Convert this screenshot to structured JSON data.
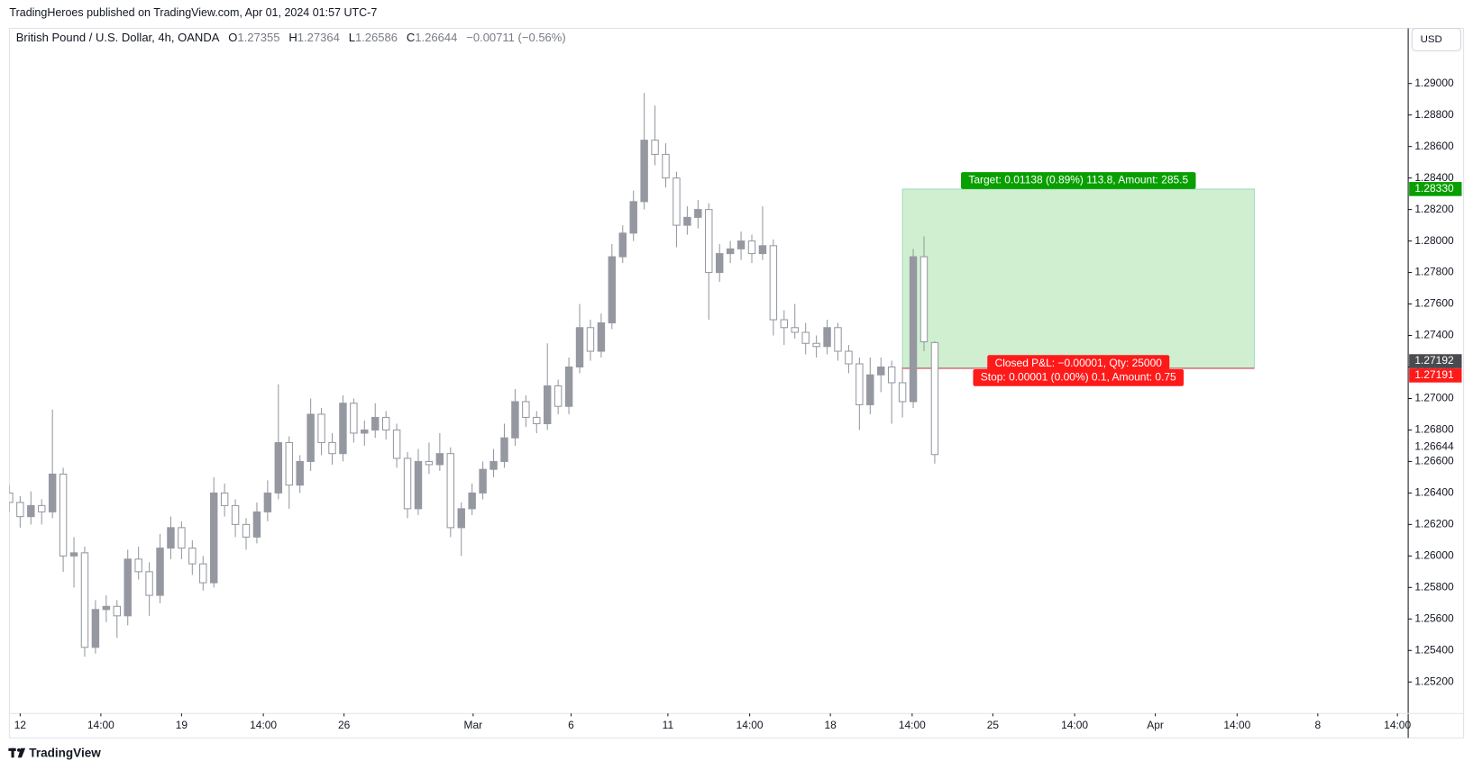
{
  "header": {
    "published": "TradingHeroes published on TradingView.com, Apr 01, 2024 01:57 UTC-7"
  },
  "footer": {
    "brand": "TradingView"
  },
  "chart_data": {
    "type": "candlestick",
    "legend": {
      "symbol": "British Pound / U.S. Dollar, 4h, OANDA",
      "fields": [
        {
          "key": "O",
          "text": "1.27355"
        },
        {
          "key": "H",
          "text": "1.27364"
        },
        {
          "key": "L",
          "text": "1.26586"
        },
        {
          "key": "C",
          "text": "1.26644"
        }
      ],
      "change": "−0.00711 (−0.56%)"
    },
    "currency": "USD",
    "up_color": "#9598a1",
    "down_color": "#ffffff",
    "wick_color": "#9598a1",
    "xlim": [
      0,
      130
    ],
    "xticks": [
      {
        "value": 1,
        "label": "12"
      },
      {
        "value": 8.5,
        "label": "14:00"
      },
      {
        "value": 16,
        "label": "19"
      },
      {
        "value": 23.6,
        "label": "14:00"
      },
      {
        "value": 31.1,
        "label": "26"
      },
      {
        "value": 43.1,
        "label": "Mar"
      },
      {
        "value": 52.2,
        "label": "6"
      },
      {
        "value": 61.2,
        "label": "11"
      },
      {
        "value": 68.8,
        "label": "14:00"
      },
      {
        "value": 76.3,
        "label": "18"
      },
      {
        "value": 83.9,
        "label": "14:00"
      },
      {
        "value": 91.4,
        "label": "25"
      },
      {
        "value": 99,
        "label": "14:00"
      },
      {
        "value": 106.5,
        "label": "Apr"
      },
      {
        "value": 114.1,
        "label": "14:00"
      },
      {
        "value": 121.6,
        "label": "8"
      },
      {
        "value": 129,
        "label": "14:00"
      }
    ],
    "ylim": [
      1.25,
      1.2935
    ],
    "yticks": [
      {
        "value": 1.252,
        "label": "1.25200"
      },
      {
        "value": 1.254,
        "label": "1.25400"
      },
      {
        "value": 1.256,
        "label": "1.25600"
      },
      {
        "value": 1.258,
        "label": "1.25800"
      },
      {
        "value": 1.26,
        "label": "1.26000"
      },
      {
        "value": 1.262,
        "label": "1.26200"
      },
      {
        "value": 1.264,
        "label": "1.26400"
      },
      {
        "value": 1.266,
        "label": "1.26600"
      },
      {
        "value": 1.268,
        "label": "1.26800"
      },
      {
        "value": 1.27,
        "label": "1.27000"
      },
      {
        "value": 1.272,
        "label": "1.27200"
      },
      {
        "value": 1.274,
        "label": "1.27400"
      },
      {
        "value": 1.276,
        "label": "1.27600"
      },
      {
        "value": 1.278,
        "label": "1.27800"
      },
      {
        "value": 1.28,
        "label": "1.28000"
      },
      {
        "value": 1.282,
        "label": "1.28200"
      },
      {
        "value": 1.284,
        "label": "1.28400"
      },
      {
        "value": 1.286,
        "label": "1.28600"
      },
      {
        "value": 1.288,
        "label": "1.28800"
      },
      {
        "value": 1.29,
        "label": "1.29000"
      }
    ],
    "grid": false,
    "candles": [
      [
        1.264,
        1.2645,
        1.2628,
        1.2634
      ],
      [
        1.2634,
        1.2638,
        1.2618,
        1.2625
      ],
      [
        1.2625,
        1.2641,
        1.262,
        1.2632
      ],
      [
        1.2632,
        1.2636,
        1.262,
        1.2628
      ],
      [
        1.2628,
        1.2693,
        1.2624,
        1.2652
      ],
      [
        1.2652,
        1.2656,
        1.259,
        1.26
      ],
      [
        1.26,
        1.2612,
        1.258,
        1.2602
      ],
      [
        1.2602,
        1.2606,
        1.2536,
        1.2542
      ],
      [
        1.2542,
        1.2572,
        1.2538,
        1.2566
      ],
      [
        1.2566,
        1.2575,
        1.2558,
        1.2568
      ],
      [
        1.2568,
        1.2572,
        1.2548,
        1.2562
      ],
      [
        1.2562,
        1.2604,
        1.2556,
        1.2598
      ],
      [
        1.2598,
        1.2606,
        1.2585,
        1.259
      ],
      [
        1.259,
        1.2596,
        1.2562,
        1.2575
      ],
      [
        1.2575,
        1.2614,
        1.257,
        1.2605
      ],
      [
        1.2605,
        1.2625,
        1.2598,
        1.2618
      ],
      [
        1.2618,
        1.2622,
        1.2598,
        1.2605
      ],
      [
        1.2605,
        1.261,
        1.2588,
        1.2595
      ],
      [
        1.2595,
        1.26,
        1.2578,
        1.2583
      ],
      [
        1.2583,
        1.265,
        1.258,
        1.264
      ],
      [
        1.264,
        1.2646,
        1.2625,
        1.2632
      ],
      [
        1.2632,
        1.2636,
        1.2612,
        1.262
      ],
      [
        1.262,
        1.2624,
        1.2604,
        1.2612
      ],
      [
        1.2612,
        1.2634,
        1.2608,
        1.2628
      ],
      [
        1.2628,
        1.2648,
        1.2622,
        1.264
      ],
      [
        1.264,
        1.2709,
        1.2636,
        1.2672
      ],
      [
        1.2672,
        1.2676,
        1.263,
        1.2645
      ],
      [
        1.2645,
        1.2664,
        1.264,
        1.266
      ],
      [
        1.266,
        1.27,
        1.2654,
        1.269
      ],
      [
        1.269,
        1.2694,
        1.2664,
        1.2672
      ],
      [
        1.2672,
        1.2678,
        1.2658,
        1.2665
      ],
      [
        1.2665,
        1.2702,
        1.266,
        1.2697
      ],
      [
        1.2697,
        1.27,
        1.2672,
        1.2678
      ],
      [
        1.2678,
        1.2686,
        1.267,
        1.268
      ],
      [
        1.268,
        1.2697,
        1.2675,
        1.2688
      ],
      [
        1.2688,
        1.2692,
        1.2674,
        1.268
      ],
      [
        1.268,
        1.2684,
        1.2656,
        1.2662
      ],
      [
        1.2662,
        1.2666,
        1.2624,
        1.263
      ],
      [
        1.263,
        1.2668,
        1.2626,
        1.266
      ],
      [
        1.266,
        1.2672,
        1.2652,
        1.2658
      ],
      [
        1.2658,
        1.2678,
        1.2654,
        1.2665
      ],
      [
        1.2665,
        1.2669,
        1.2612,
        1.2618
      ],
      [
        1.2618,
        1.2634,
        1.26,
        1.263
      ],
      [
        1.263,
        1.2646,
        1.2626,
        1.264
      ],
      [
        1.264,
        1.266,
        1.2636,
        1.2655
      ],
      [
        1.2655,
        1.2668,
        1.265,
        1.266
      ],
      [
        1.266,
        1.2684,
        1.2656,
        1.2675
      ],
      [
        1.2675,
        1.2706,
        1.267,
        1.2698
      ],
      [
        1.2698,
        1.2702,
        1.2682,
        1.2688
      ],
      [
        1.2688,
        1.2692,
        1.2678,
        1.2684
      ],
      [
        1.2684,
        1.2735,
        1.268,
        1.2708
      ],
      [
        1.2708,
        1.2712,
        1.269,
        1.2695
      ],
      [
        1.2695,
        1.2726,
        1.269,
        1.272
      ],
      [
        1.272,
        1.276,
        1.2716,
        1.2745
      ],
      [
        1.2745,
        1.275,
        1.2724,
        1.273
      ],
      [
        1.273,
        1.2754,
        1.2726,
        1.2748
      ],
      [
        1.2748,
        1.2798,
        1.2744,
        1.279
      ],
      [
        1.279,
        1.281,
        1.2786,
        1.2805
      ],
      [
        1.2805,
        1.2832,
        1.28,
        1.2825
      ],
      [
        1.2825,
        1.2894,
        1.282,
        1.2864
      ],
      [
        1.2864,
        1.2886,
        1.2848,
        1.2855
      ],
      [
        1.2855,
        1.2862,
        1.2834,
        1.284
      ],
      [
        1.284,
        1.2844,
        1.2796,
        1.281
      ],
      [
        1.281,
        1.2822,
        1.2804,
        1.2815
      ],
      [
        1.2815,
        1.2826,
        1.2808,
        1.282
      ],
      [
        1.282,
        1.2824,
        1.275,
        1.278
      ],
      [
        1.278,
        1.2798,
        1.2774,
        1.2792
      ],
      [
        1.2792,
        1.28,
        1.2786,
        1.2795
      ],
      [
        1.2795,
        1.2806,
        1.2788,
        1.28
      ],
      [
        1.28,
        1.2804,
        1.2786,
        1.2792
      ],
      [
        1.2792,
        1.2822,
        1.2788,
        1.2797
      ],
      [
        1.2797,
        1.2801,
        1.274,
        1.275
      ],
      [
        1.275,
        1.2756,
        1.2734,
        1.2745
      ],
      [
        1.2745,
        1.276,
        1.2738,
        1.2742
      ],
      [
        1.2742,
        1.2748,
        1.2728,
        1.2735
      ],
      [
        1.2735,
        1.274,
        1.2726,
        1.2733
      ],
      [
        1.2733,
        1.275,
        1.2728,
        1.2745
      ],
      [
        1.2745,
        1.2748,
        1.2724,
        1.273
      ],
      [
        1.273,
        1.2734,
        1.2716,
        1.2722
      ],
      [
        1.2722,
        1.2726,
        1.268,
        1.2696
      ],
      [
        1.2696,
        1.2726,
        1.269,
        1.2715
      ],
      [
        1.2715,
        1.2726,
        1.2704,
        1.272
      ],
      [
        1.272,
        1.2724,
        1.2684,
        1.271
      ],
      [
        1.271,
        1.272,
        1.2688,
        1.2698
      ],
      [
        1.2698,
        1.2795,
        1.2694,
        1.279
      ],
      [
        1.279,
        1.2803,
        1.273,
        1.2736
      ],
      [
        1.27355,
        1.27364,
        1.26586,
        1.26644
      ]
    ],
    "position": {
      "start": 83,
      "end": 115.7,
      "target": {
        "value": 1.2833,
        "label": "1.28330"
      },
      "entry": {
        "value": 1.27192,
        "label": "1.27192"
      },
      "stop": {
        "value": 1.27191,
        "label": "1.27191"
      },
      "target_color": "#089981",
      "zone_color": "#c8ecc8",
      "stop_color": "#f23645",
      "target_text": "Target: 0.01138 (0.89%) 113.8, Amount: 285.5",
      "pnl_text": "Closed P&L: −0.00001, Qty: 25000",
      "stop_text": "Stop: 0.00001 (0.00%) 0.1, Amount: 0.75"
    },
    "last_price": {
      "value": 1.26644,
      "label": "1.26644"
    }
  }
}
